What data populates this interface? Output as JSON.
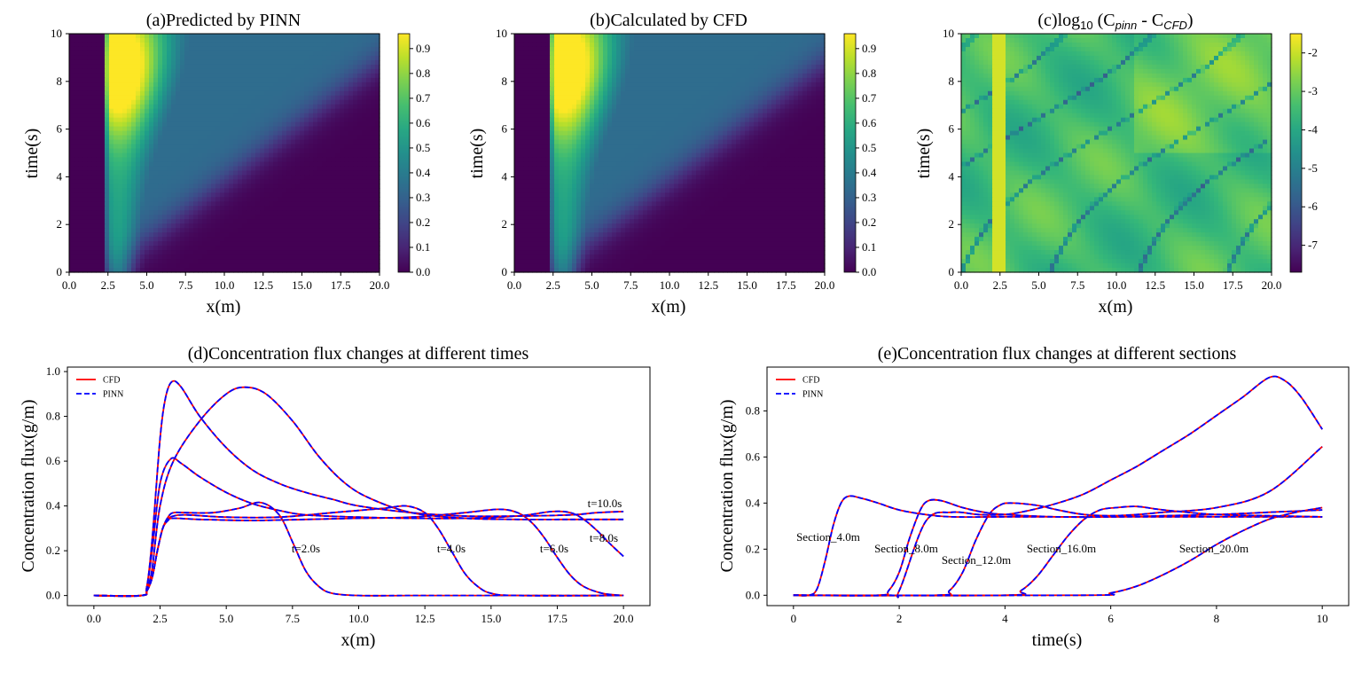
{
  "chart_data": [
    {
      "type": "heatmap",
      "title": "(a)Predicted by PINN",
      "xlabel": "x(m)",
      "ylabel": "time(s)",
      "xlim": [
        0,
        20
      ],
      "ylim": [
        0,
        10
      ],
      "xticks": [
        "0.0",
        "2.5",
        "5.0",
        "7.5",
        "10.0",
        "12.5",
        "15.0",
        "17.5",
        "20.0"
      ],
      "yticks": [
        "0",
        "2",
        "4",
        "6",
        "8",
        "10"
      ],
      "colorbar": {
        "range": [
          0,
          0.96
        ],
        "ticks": [
          "0.0",
          "0.1",
          "0.2",
          "0.3",
          "0.4",
          "0.5",
          "0.6",
          "0.7",
          "0.8",
          "0.9"
        ],
        "colormap": "viridis"
      },
      "field": "concentration"
    },
    {
      "type": "heatmap",
      "title": "(b)Calculated by CFD",
      "xlabel": "x(m)",
      "ylabel": "time(s)",
      "xlim": [
        0,
        20
      ],
      "ylim": [
        0,
        10
      ],
      "xticks": [
        "0.0",
        "2.5",
        "5.0",
        "7.5",
        "10.0",
        "12.5",
        "15.0",
        "17.5",
        "20.0"
      ],
      "yticks": [
        "0",
        "2",
        "4",
        "6",
        "8",
        "10"
      ],
      "colorbar": {
        "range": [
          0,
          0.96
        ],
        "ticks": [
          "0.0",
          "0.1",
          "0.2",
          "0.3",
          "0.4",
          "0.5",
          "0.6",
          "0.7",
          "0.8",
          "0.9"
        ],
        "colormap": "viridis"
      },
      "field": "concentration"
    },
    {
      "type": "heatmap",
      "title_parts": {
        "pre": "(c)log",
        "sub1": "10",
        "mid": " (C",
        "sub2": "pinn",
        "mid2": " - C",
        "sub3": "CFD",
        "post": ")"
      },
      "xlabel": "x(m)",
      "ylabel": "time(s)",
      "xlim": [
        0,
        20
      ],
      "ylim": [
        0,
        10
      ],
      "xticks": [
        "0.0",
        "2.5",
        "5.0",
        "7.5",
        "10.0",
        "12.5",
        "15.0",
        "17.5",
        "20.0"
      ],
      "yticks": [
        "0",
        "2",
        "4",
        "6",
        "8",
        "10"
      ],
      "colorbar": {
        "range": [
          -7.7,
          -1.5
        ],
        "ticks": [
          "-2",
          "-3",
          "-4",
          "-5",
          "-6",
          "-7"
        ],
        "colormap": "viridis"
      },
      "field": "log_error"
    },
    {
      "type": "line",
      "title": "(d)Concentration flux changes at different times",
      "xlabel": "x(m)",
      "ylabel": "Concentration flux(g/m)",
      "xlim": [
        -1,
        21
      ],
      "ylim": [
        -0.045,
        1.02
      ],
      "xticks": [
        "0.0",
        "2.5",
        "5.0",
        "7.5",
        "10.0",
        "12.5",
        "15.0",
        "17.5",
        "20.0"
      ],
      "yticks": [
        "0.0",
        "0.2",
        "0.4",
        "0.6",
        "0.8",
        "1.0"
      ],
      "legend": {
        "placement": "top-left",
        "entries": [
          "CFD",
          "PINN"
        ]
      },
      "series": [
        {
          "annotation": "t=2.0s",
          "x": [
            0,
            1.8,
            2.0,
            2.2,
            2.4,
            2.6,
            2.8,
            3.0,
            3.5,
            4.5,
            5.5,
            6.3,
            7.0,
            7.5,
            8.0,
            8.5,
            9.0,
            10,
            12,
            15,
            20
          ],
          "y": [
            0,
            0,
            0.02,
            0.08,
            0.2,
            0.3,
            0.35,
            0.37,
            0.37,
            0.37,
            0.39,
            0.415,
            0.36,
            0.24,
            0.11,
            0.04,
            0.01,
            0,
            0,
            0,
            0
          ]
        },
        {
          "annotation": "t=4.0s",
          "x": [
            0,
            1.8,
            2.0,
            2.2,
            2.4,
            2.6,
            2.8,
            3.0,
            3.5,
            5,
            7,
            9,
            10,
            11,
            11.8,
            12.5,
            13,
            13.5,
            14,
            14.5,
            15,
            16,
            20
          ],
          "y": [
            0,
            0,
            0.02,
            0.08,
            0.2,
            0.3,
            0.34,
            0.355,
            0.36,
            0.35,
            0.35,
            0.37,
            0.38,
            0.39,
            0.4,
            0.37,
            0.3,
            0.2,
            0.1,
            0.04,
            0.01,
            0,
            0
          ]
        },
        {
          "annotation": "t=6.0s",
          "x": [
            0,
            1.8,
            2.0,
            2.2,
            2.4,
            2.6,
            2.8,
            3.0,
            4,
            6,
            8,
            10,
            12,
            14,
            15.3,
            16,
            16.5,
            17,
            17.5,
            18,
            18.5,
            19.2,
            20
          ],
          "y": [
            0,
            0,
            0.02,
            0.08,
            0.2,
            0.3,
            0.335,
            0.345,
            0.34,
            0.335,
            0.34,
            0.345,
            0.35,
            0.37,
            0.385,
            0.37,
            0.33,
            0.26,
            0.17,
            0.09,
            0.04,
            0.01,
            0
          ]
        },
        {
          "annotation": "t=8.0s",
          "x": [
            0,
            1.8,
            2.0,
            2.2,
            2.5,
            2.9,
            3.3,
            4,
            5,
            6,
            7,
            8,
            10,
            12,
            14,
            16,
            17.3,
            18,
            18.5,
            19,
            19.5,
            20
          ],
          "y": [
            0,
            0,
            0.04,
            0.2,
            0.5,
            0.61,
            0.59,
            0.53,
            0.46,
            0.41,
            0.38,
            0.36,
            0.35,
            0.345,
            0.345,
            0.355,
            0.375,
            0.37,
            0.34,
            0.29,
            0.23,
            0.175
          ]
        },
        {
          "annotation": "t=10.0s",
          "x": [
            0,
            1.8,
            2.0,
            2.2,
            2.5,
            2.7,
            2.95,
            3.3,
            4,
            5,
            6,
            7,
            8,
            9,
            10,
            12,
            14,
            16,
            18,
            19,
            20
          ],
          "y": [
            0,
            0,
            0.04,
            0.25,
            0.7,
            0.88,
            0.955,
            0.93,
            0.8,
            0.66,
            0.56,
            0.5,
            0.46,
            0.43,
            0.4,
            0.37,
            0.355,
            0.355,
            0.36,
            0.37,
            0.375
          ]
        },
        {
          "annotation": "",
          "x": [
            0,
            1.8,
            2.0,
            2.2,
            2.5,
            3,
            4,
            5,
            5.7,
            6.5,
            7.5,
            8.5,
            9.5,
            10.5,
            12,
            14,
            16,
            18,
            20
          ],
          "y": [
            0,
            0,
            0.03,
            0.12,
            0.4,
            0.6,
            0.78,
            0.9,
            0.93,
            0.9,
            0.78,
            0.62,
            0.5,
            0.43,
            0.37,
            0.345,
            0.34,
            0.34,
            0.34
          ]
        }
      ]
    },
    {
      "type": "line",
      "title": "(e)Concentration flux changes at different sections",
      "xlabel": "time(s)",
      "ylabel": "Concentration flux(g/m)",
      "xlim": [
        -0.5,
        10.5
      ],
      "ylim": [
        -0.045,
        0.99
      ],
      "xticks": [
        "0",
        "2",
        "4",
        "6",
        "8",
        "10"
      ],
      "yticks": [
        "0.0",
        "0.2",
        "0.4",
        "0.6",
        "0.8"
      ],
      "legend": {
        "placement": "top-left",
        "entries": [
          "CFD",
          "PINN"
        ]
      },
      "series": [
        {
          "annotation": "Section_4.0m",
          "x": [
            0,
            0.3,
            0.45,
            0.6,
            0.75,
            0.9,
            1.05,
            1.3,
            1.6,
            2,
            2.5,
            3,
            4,
            5,
            6,
            7,
            8,
            9,
            10
          ],
          "y": [
            0,
            0,
            0.03,
            0.15,
            0.3,
            0.4,
            0.43,
            0.42,
            0.4,
            0.37,
            0.35,
            0.34,
            0.34,
            0.34,
            0.34,
            0.34,
            0.34,
            0.34,
            0.34
          ]
        },
        {
          "annotation": "Section_8.0m",
          "x": [
            0,
            1.6,
            1.8,
            2.0,
            2.2,
            2.4,
            2.55,
            2.8,
            3.2,
            3.6,
            4,
            5,
            6,
            7,
            8,
            9,
            10
          ],
          "y": [
            0,
            0,
            0.02,
            0.1,
            0.25,
            0.37,
            0.41,
            0.41,
            0.38,
            0.36,
            0.35,
            0.34,
            0.34,
            0.345,
            0.35,
            0.36,
            0.37
          ]
        },
        {
          "annotation": "Section_12.0m",
          "x": [
            0,
            2.7,
            2.95,
            3.2,
            3.45,
            3.7,
            3.9,
            4.1,
            4.6,
            5,
            5.5,
            6,
            6.5,
            7,
            8,
            9,
            10
          ],
          "y": [
            0,
            0,
            0.02,
            0.1,
            0.24,
            0.35,
            0.39,
            0.4,
            0.39,
            0.37,
            0.35,
            0.345,
            0.35,
            0.36,
            0.38,
            0.45,
            0.645
          ]
        },
        {
          "annotation": "Section_16.0m",
          "x": [
            0,
            4.0,
            4.3,
            4.6,
            4.9,
            5.2,
            5.5,
            5.8,
            6.1,
            6.5,
            7,
            8,
            9,
            10
          ],
          "y": [
            0,
            0,
            0.02,
            0.08,
            0.17,
            0.26,
            0.33,
            0.37,
            0.38,
            0.385,
            0.37,
            0.35,
            0.345,
            0.34
          ]
        },
        {
          "annotation": "Section_20.0m",
          "x": [
            0,
            5.5,
            6,
            6.5,
            7,
            7.5,
            8,
            8.5,
            9,
            9.5,
            10
          ],
          "y": [
            0,
            0,
            0.01,
            0.04,
            0.09,
            0.15,
            0.22,
            0.28,
            0.33,
            0.36,
            0.38
          ]
        },
        {
          "annotation": "",
          "x": [
            0,
            1.8,
            2,
            2.5,
            3,
            3.5,
            4,
            4.5,
            5,
            5.5,
            6,
            6.5,
            7,
            7.5,
            8,
            8.5,
            9,
            9.3,
            9.6,
            10
          ],
          "y": [
            0,
            0,
            0.02,
            0.32,
            0.36,
            0.35,
            0.35,
            0.37,
            0.4,
            0.44,
            0.5,
            0.56,
            0.63,
            0.7,
            0.78,
            0.86,
            0.945,
            0.93,
            0.86,
            0.72
          ]
        }
      ]
    }
  ]
}
